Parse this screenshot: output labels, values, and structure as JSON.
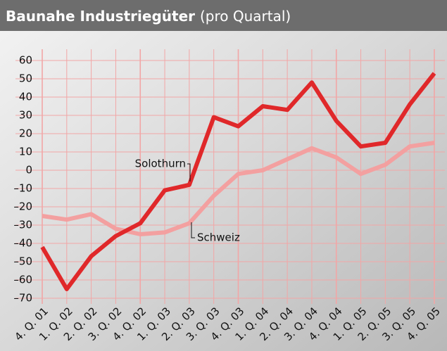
{
  "chart_data": {
    "type": "line",
    "title": "Baunahe Industriegüter",
    "subtitle": "(pro Quartal)",
    "categories": [
      "4. Q. 01",
      "1. Q. 02",
      "2. Q. 02",
      "3. Q. 02",
      "4. Q. 02",
      "1. Q. 03",
      "2. Q. 03",
      "3. Q. 03",
      "4. Q. 03",
      "1. Q. 04",
      "2. Q. 04",
      "3. Q. 04",
      "4. Q. 04",
      "1. Q. 05",
      "2. Q. 05",
      "3. Q. 05",
      "4. Q. 05"
    ],
    "series": [
      {
        "name": "Solothurn",
        "color": "#e0282a",
        "values": [
          -42,
          -65,
          -47,
          -36,
          -29,
          -11,
          -8,
          29,
          24,
          35,
          33,
          48,
          27,
          13,
          15,
          36,
          53
        ]
      },
      {
        "name": "Schweiz",
        "color": "#f3a0a0",
        "values": [
          -25,
          -27,
          -24,
          -32,
          -35,
          -34,
          -29,
          -14,
          -2,
          0,
          6,
          12,
          7,
          -2,
          3,
          13,
          15
        ]
      }
    ],
    "ylim": [
      -70,
      60
    ],
    "yticks": [
      {
        "value": -70,
        "label": "–70"
      },
      {
        "value": -60,
        "label": "–60"
      },
      {
        "value": -50,
        "label": "–50"
      },
      {
        "value": -40,
        "label": "–40"
      },
      {
        "value": -30,
        "label": "–30"
      },
      {
        "value": -20,
        "label": "–20"
      },
      {
        "value": -10,
        "label": "–10"
      },
      0,
      10,
      20,
      30,
      40,
      50,
      60
    ],
    "grid": true
  }
}
